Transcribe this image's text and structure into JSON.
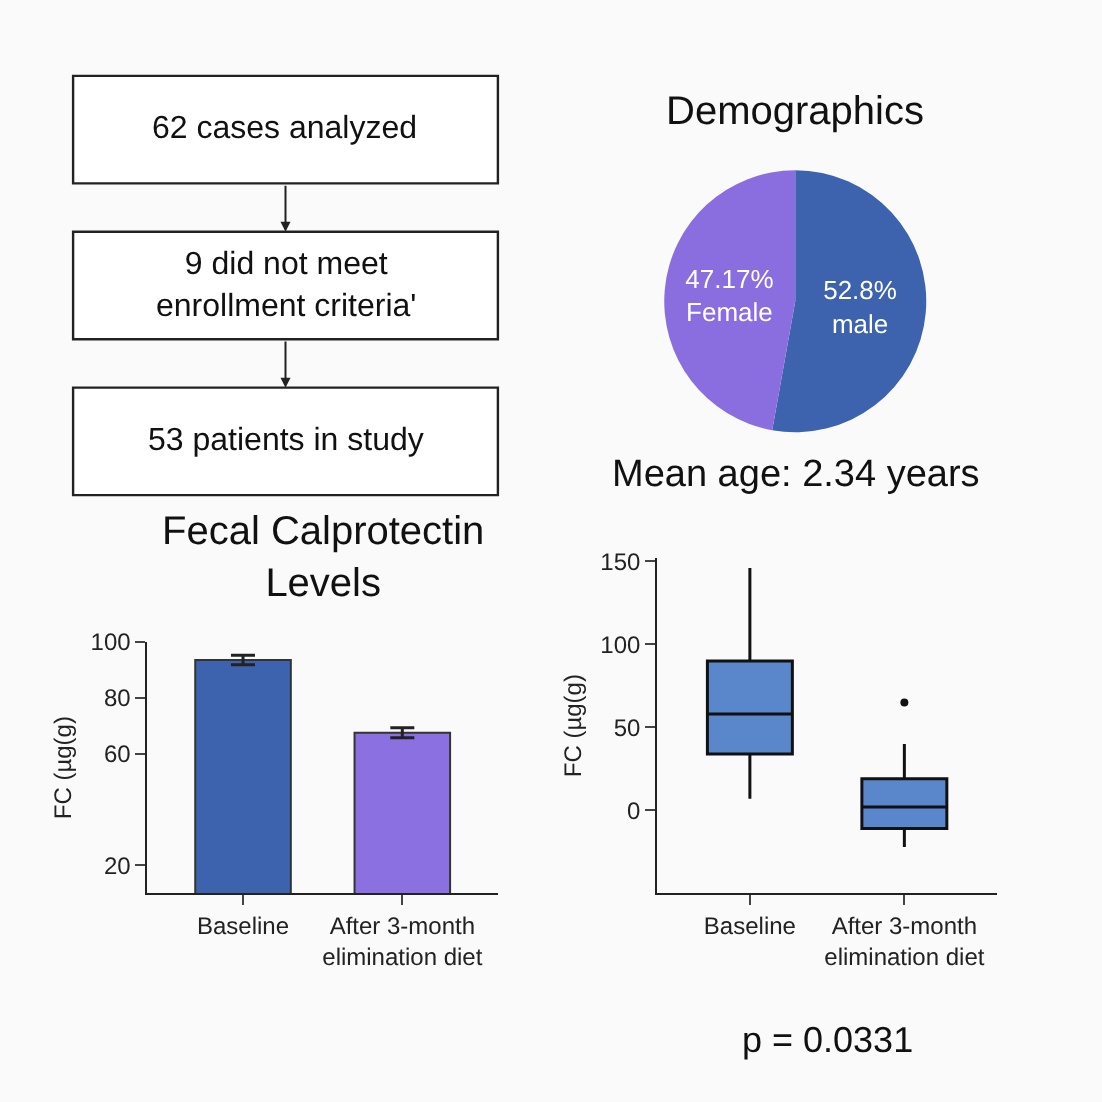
{
  "chart_data": [
    {
      "type": "other",
      "annotations": [
        "62 cases analyzed",
        "9 did not meet enrollment criteria'",
        "53 patients in study"
      ]
    },
    {
      "type": "pie",
      "title": "Demographics",
      "categories": [
        "male",
        "Female"
      ],
      "values": [
        52.8,
        47.17
      ],
      "value_labels": [
        "52.8%",
        "47.17%"
      ],
      "colors": [
        "#3d63ae",
        "#8a6ddf"
      ],
      "annotations": [
        "Mean age: 2.34 years"
      ]
    },
    {
      "type": "bar",
      "title": "Fecal Calprotectin Levels",
      "ylabel": "FC (µg(g)",
      "categories": [
        "Baseline",
        "After 3-month elimination diet"
      ],
      "values": [
        93.5,
        67.5
      ],
      "errors": [
        [
          91.8,
          95.2
        ],
        [
          65.7,
          69.3
        ]
      ],
      "colors": [
        "#3d63ae",
        "#8a70e0"
      ],
      "ylim": [
        10,
        100
      ],
      "yticks": [
        20,
        60,
        80,
        100
      ]
    },
    {
      "type": "box",
      "ylabel": "FC (µg(g)",
      "categories": [
        "Baseline",
        "After 3-month elimination diet"
      ],
      "boxes": [
        {
          "low": 7,
          "q1": 34,
          "median": 58,
          "q3": 90,
          "high": 146
        },
        {
          "low": -22,
          "q1": -11,
          "median": 2,
          "q3": 19,
          "high": 40,
          "outliers": [
            65
          ]
        }
      ],
      "color": "#5a86cc",
      "ylim": [
        -50,
        152
      ],
      "yticks": [
        0,
        50,
        100,
        150
      ],
      "annotations": [
        "p = 0.0331"
      ]
    }
  ]
}
